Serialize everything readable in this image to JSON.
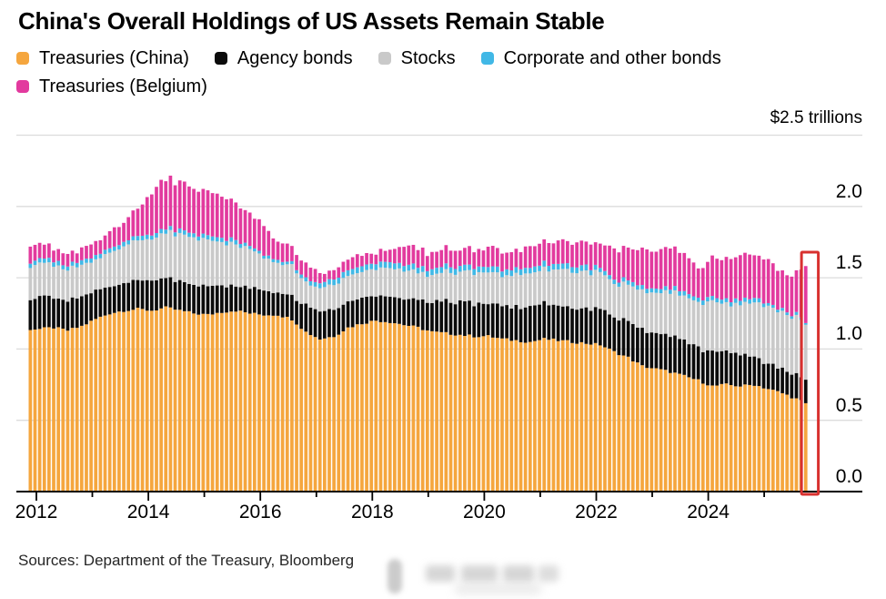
{
  "title": "China's Overall Holdings of US Assets Remain Stable",
  "legend": [
    {
      "label": "Treasuries (China)",
      "color": "#F5A63E"
    },
    {
      "label": "Agency bonds",
      "color": "#0B0B0B"
    },
    {
      "label": "Stocks",
      "color": "#C9C9C9"
    },
    {
      "label": "Corporate and other bonds",
      "color": "#41B8E6"
    },
    {
      "label": "Treasuries (Belgium)",
      "color": "#E23A9E"
    }
  ],
  "axis_unit_label": "$2.5 trillions",
  "source_note": "Sources: Department of the Treasury, Bloomberg",
  "chart_data": {
    "type": "bar",
    "stacked": true,
    "title": "China's Overall Holdings of US Assets Remain Stable",
    "ylabel": "$ trillions",
    "ylim": [
      0,
      2.5
    ],
    "y_ticks": [
      "0.0",
      "0.5",
      "1.0",
      "1.5",
      "2.0"
    ],
    "x_start_year": 2011.8333,
    "x_end_year": 2025.6667,
    "bar_interval": "monthly",
    "x_tick_years": [
      2012,
      2013,
      2014,
      2015,
      2016,
      2017,
      2018,
      2019,
      2020,
      2021,
      2022,
      2023,
      2024,
      2025
    ],
    "x_label_years": [
      "2012",
      "2014",
      "2016",
      "2018",
      "2020",
      "2022",
      "2024"
    ],
    "grid": true,
    "legend_position": "top",
    "highlight": {
      "target": "most recent bar",
      "color": "#D8312F"
    },
    "series": [
      {
        "name": "Treasuries (China)",
        "color": "#F5A63E",
        "anchors": [
          [
            2012.0,
            1.14
          ],
          [
            2012.25,
            1.15
          ],
          [
            2012.5,
            1.13
          ],
          [
            2012.75,
            1.16
          ],
          [
            2013.0,
            1.21
          ],
          [
            2013.25,
            1.25
          ],
          [
            2013.5,
            1.27
          ],
          [
            2013.75,
            1.28
          ],
          [
            2014.0,
            1.27
          ],
          [
            2014.25,
            1.29
          ],
          [
            2014.5,
            1.27
          ],
          [
            2014.75,
            1.25
          ],
          [
            2015.0,
            1.24
          ],
          [
            2015.25,
            1.26
          ],
          [
            2015.5,
            1.27
          ],
          [
            2015.75,
            1.25
          ],
          [
            2016.0,
            1.24
          ],
          [
            2016.25,
            1.24
          ],
          [
            2016.5,
            1.21
          ],
          [
            2016.75,
            1.12
          ],
          [
            2017.0,
            1.07
          ],
          [
            2017.25,
            1.09
          ],
          [
            2017.5,
            1.15
          ],
          [
            2017.75,
            1.18
          ],
          [
            2018.0,
            1.2
          ],
          [
            2018.25,
            1.19
          ],
          [
            2018.5,
            1.17
          ],
          [
            2018.75,
            1.15
          ],
          [
            2019.0,
            1.12
          ],
          [
            2019.25,
            1.11
          ],
          [
            2019.5,
            1.1
          ],
          [
            2019.75,
            1.09
          ],
          [
            2020.0,
            1.09
          ],
          [
            2020.25,
            1.07
          ],
          [
            2020.5,
            1.06
          ],
          [
            2020.75,
            1.05
          ],
          [
            2021.0,
            1.07
          ],
          [
            2021.25,
            1.06
          ],
          [
            2021.5,
            1.05
          ],
          [
            2021.75,
            1.04
          ],
          [
            2022.0,
            1.03
          ],
          [
            2022.25,
            0.98
          ],
          [
            2022.5,
            0.94
          ],
          [
            2022.75,
            0.88
          ],
          [
            2023.0,
            0.86
          ],
          [
            2023.25,
            0.84
          ],
          [
            2023.5,
            0.81
          ],
          [
            2023.75,
            0.78
          ],
          [
            2024.0,
            0.74
          ],
          [
            2024.25,
            0.75
          ],
          [
            2024.5,
            0.74
          ],
          [
            2024.75,
            0.75
          ],
          [
            2025.0,
            0.72
          ],
          [
            2025.25,
            0.69
          ],
          [
            2025.5,
            0.65
          ],
          [
            2025.6667,
            0.62
          ]
        ]
      },
      {
        "name": "Agency bonds",
        "color": "#0B0B0B",
        "anchors": [
          [
            2012.0,
            0.22
          ],
          [
            2012.5,
            0.2
          ],
          [
            2013.0,
            0.2
          ],
          [
            2013.5,
            0.19
          ],
          [
            2014.0,
            0.21
          ],
          [
            2014.5,
            0.2
          ],
          [
            2015.0,
            0.2
          ],
          [
            2015.5,
            0.18
          ],
          [
            2016.0,
            0.17
          ],
          [
            2016.5,
            0.17
          ],
          [
            2016.75,
            0.19
          ],
          [
            2017.0,
            0.2
          ],
          [
            2017.5,
            0.19
          ],
          [
            2018.0,
            0.18
          ],
          [
            2018.5,
            0.19
          ],
          [
            2019.0,
            0.21
          ],
          [
            2019.5,
            0.23
          ],
          [
            2020.0,
            0.23
          ],
          [
            2020.5,
            0.24
          ],
          [
            2021.0,
            0.25
          ],
          [
            2021.5,
            0.25
          ],
          [
            2022.0,
            0.25
          ],
          [
            2022.5,
            0.25
          ],
          [
            2023.0,
            0.26
          ],
          [
            2023.5,
            0.25
          ],
          [
            2023.75,
            0.23
          ],
          [
            2024.0,
            0.24
          ],
          [
            2024.5,
            0.23
          ],
          [
            2024.75,
            0.2
          ],
          [
            2025.0,
            0.17
          ],
          [
            2025.5,
            0.17
          ],
          [
            2025.6667,
            0.165
          ]
        ]
      },
      {
        "name": "Stocks",
        "color": "#C9C9C9",
        "anchors": [
          [
            2012.0,
            0.23
          ],
          [
            2012.5,
            0.22
          ],
          [
            2013.0,
            0.22
          ],
          [
            2013.5,
            0.26
          ],
          [
            2014.0,
            0.29
          ],
          [
            2014.25,
            0.32
          ],
          [
            2014.5,
            0.33
          ],
          [
            2015.0,
            0.32
          ],
          [
            2015.5,
            0.29
          ],
          [
            2015.75,
            0.27
          ],
          [
            2016.0,
            0.23
          ],
          [
            2016.25,
            0.21
          ],
          [
            2016.5,
            0.21
          ],
          [
            2016.75,
            0.16
          ],
          [
            2017.0,
            0.17
          ],
          [
            2017.5,
            0.18
          ],
          [
            2018.0,
            0.19
          ],
          [
            2018.5,
            0.2
          ],
          [
            2019.0,
            0.19
          ],
          [
            2019.5,
            0.21
          ],
          [
            2020.0,
            0.22
          ],
          [
            2020.25,
            0.21
          ],
          [
            2020.5,
            0.23
          ],
          [
            2021.0,
            0.24
          ],
          [
            2021.5,
            0.26
          ],
          [
            2022.0,
            0.25
          ],
          [
            2022.25,
            0.24
          ],
          [
            2022.5,
            0.25
          ],
          [
            2022.75,
            0.27
          ],
          [
            2023.0,
            0.29
          ],
          [
            2023.25,
            0.31
          ],
          [
            2023.5,
            0.31
          ],
          [
            2023.75,
            0.32
          ],
          [
            2024.0,
            0.36
          ],
          [
            2024.25,
            0.33
          ],
          [
            2024.5,
            0.35
          ],
          [
            2024.75,
            0.38
          ],
          [
            2025.0,
            0.4
          ],
          [
            2025.25,
            0.39
          ],
          [
            2025.5,
            0.4
          ],
          [
            2025.6667,
            0.385
          ]
        ]
      },
      {
        "name": "Corporate and other bonds",
        "color": "#41B8E6",
        "anchors": [
          [
            2012.0,
            0.03
          ],
          [
            2015.5,
            0.03
          ],
          [
            2015.75,
            0.02
          ],
          [
            2016.5,
            0.02
          ],
          [
            2016.75,
            0.03
          ],
          [
            2017.25,
            0.04
          ],
          [
            2021.75,
            0.04
          ],
          [
            2022.0,
            0.03
          ],
          [
            2024.75,
            0.03
          ],
          [
            2025.0,
            0.02
          ],
          [
            2025.5,
            0.02
          ],
          [
            2025.6667,
            0.012
          ]
        ]
      },
      {
        "name": "Treasuries (Belgium)",
        "color": "#E23A9E",
        "anchors": [
          [
            2012.0,
            0.11
          ],
          [
            2012.25,
            0.09
          ],
          [
            2012.5,
            0.08
          ],
          [
            2012.75,
            0.08
          ],
          [
            2013.0,
            0.1
          ],
          [
            2013.25,
            0.12
          ],
          [
            2013.5,
            0.14
          ],
          [
            2013.75,
            0.2
          ],
          [
            2014.0,
            0.3
          ],
          [
            2014.25,
            0.35
          ],
          [
            2014.5,
            0.34
          ],
          [
            2014.75,
            0.32
          ],
          [
            2015.0,
            0.31
          ],
          [
            2015.25,
            0.3
          ],
          [
            2015.5,
            0.26
          ],
          [
            2015.75,
            0.23
          ],
          [
            2016.0,
            0.2
          ],
          [
            2016.25,
            0.13
          ],
          [
            2016.5,
            0.11
          ],
          [
            2016.75,
            0.1
          ],
          [
            2017.0,
            0.07
          ],
          [
            2017.25,
            0.07
          ],
          [
            2017.5,
            0.08
          ],
          [
            2017.75,
            0.08
          ],
          [
            2018.0,
            0.07
          ],
          [
            2018.25,
            0.09
          ],
          [
            2018.5,
            0.13
          ],
          [
            2018.75,
            0.12
          ],
          [
            2019.0,
            0.11
          ],
          [
            2019.25,
            0.12
          ],
          [
            2019.5,
            0.12
          ],
          [
            2019.75,
            0.12
          ],
          [
            2020.0,
            0.13
          ],
          [
            2020.25,
            0.13
          ],
          [
            2020.5,
            0.13
          ],
          [
            2020.75,
            0.14
          ],
          [
            2021.0,
            0.15
          ],
          [
            2021.25,
            0.16
          ],
          [
            2021.5,
            0.17
          ],
          [
            2021.75,
            0.17
          ],
          [
            2022.0,
            0.17
          ],
          [
            2022.25,
            0.21
          ],
          [
            2022.5,
            0.22
          ],
          [
            2022.75,
            0.27
          ],
          [
            2023.0,
            0.27
          ],
          [
            2023.25,
            0.28
          ],
          [
            2023.5,
            0.26
          ],
          [
            2023.75,
            0.21
          ],
          [
            2024.0,
            0.28
          ],
          [
            2024.25,
            0.28
          ],
          [
            2024.5,
            0.31
          ],
          [
            2024.75,
            0.3
          ],
          [
            2025.0,
            0.31
          ],
          [
            2025.25,
            0.27
          ],
          [
            2025.5,
            0.28
          ],
          [
            2025.6667,
            0.4
          ]
        ]
      }
    ]
  }
}
